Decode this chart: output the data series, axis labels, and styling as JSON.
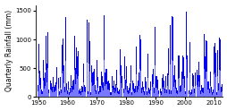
{
  "title": "",
  "ylabel": "Quarterly Rainfall (mm)",
  "xlabel": "",
  "xlim": [
    1949.0,
    2013.0
  ],
  "ylim": [
    0,
    1600
  ],
  "yticks": [
    0,
    500,
    1000,
    1500
  ],
  "xticks": [
    1950,
    1960,
    1970,
    1980,
    1990,
    2000,
    2010
  ],
  "bar_color_dark": "#0000ee",
  "bar_color_light": "#7777ff",
  "background_color": "#ffffff",
  "seed": 42,
  "num_years": 63,
  "start_year": 1950
}
